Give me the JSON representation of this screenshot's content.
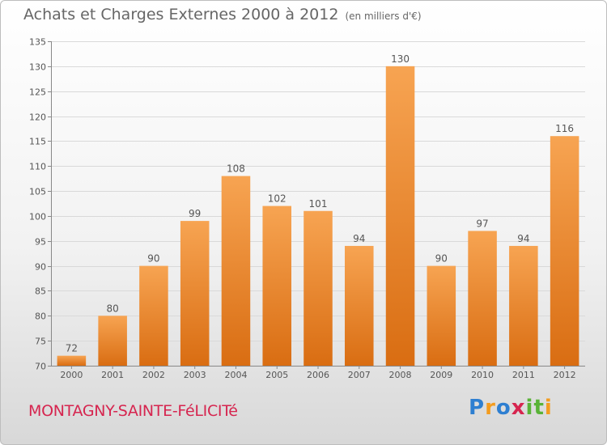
{
  "title": "Achats et Charges Externes 2000 à 2012",
  "unit": "(en milliers d'€)",
  "place": "MONTAGNY-SAINTE-FéLICITé",
  "logo": {
    "text": "Proxiti",
    "colors": [
      "#2e7fd1",
      "#f39c1f",
      "#2e7fd1",
      "#d6254f",
      "#59b337",
      "#59b337",
      "#f39c1f"
    ]
  },
  "chart_data": {
    "type": "bar",
    "title": "Achats et Charges Externes 2000 à 2012",
    "categories": [
      "2000",
      "2001",
      "2002",
      "2003",
      "2004",
      "2005",
      "2006",
      "2007",
      "2008",
      "2009",
      "2010",
      "2011",
      "2012"
    ],
    "values": [
      72,
      80,
      90,
      99,
      108,
      102,
      101,
      94,
      130,
      90,
      97,
      94,
      116
    ],
    "ylim": [
      70,
      135
    ],
    "yticks": [
      70,
      75,
      80,
      85,
      90,
      95,
      100,
      105,
      110,
      115,
      120,
      125,
      130,
      135
    ],
    "grid": true,
    "bar_color": "#f28c28"
  }
}
